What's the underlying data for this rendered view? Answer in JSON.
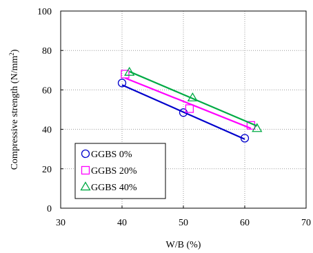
{
  "chart_data": {
    "type": "scatter",
    "xlabel": "W/B (%)",
    "ylabel": "Compressive strength (N/mm2)",
    "ylabel_main": "Compressive strength (N/mm",
    "ylabel_sup": "2",
    "ylabel_end": ")",
    "xlim": [
      30,
      70
    ],
    "ylim": [
      0,
      100
    ],
    "xticks": [
      30,
      40,
      50,
      60,
      70
    ],
    "yticks": [
      0,
      20,
      40,
      60,
      80,
      100
    ],
    "grid": true,
    "legend_position": "lower-left",
    "series": [
      {
        "name": "GGBS 0%",
        "marker": "circle",
        "color": "#0000cc",
        "points": [
          [
            40,
            63.5
          ],
          [
            50,
            48.5
          ],
          [
            60,
            35.5
          ]
        ],
        "fit": [
          [
            40,
            62.5
          ],
          [
            60,
            35.0
          ]
        ]
      },
      {
        "name": "GGBS 20%",
        "marker": "square",
        "color": "#ff00ff",
        "points": [
          [
            40.5,
            68
          ],
          [
            51,
            50.5
          ],
          [
            61,
            42
          ]
        ],
        "fit": [
          [
            40.5,
            66
          ],
          [
            61,
            40.5
          ]
        ]
      },
      {
        "name": "GGBS 40%",
        "marker": "triangle",
        "color": "#00aa44",
        "points": [
          [
            41.2,
            69
          ],
          [
            51.5,
            56
          ],
          [
            62,
            40.5
          ]
        ],
        "fit": [
          [
            41.2,
            69.3
          ],
          [
            62,
            41.7
          ]
        ]
      }
    ]
  }
}
